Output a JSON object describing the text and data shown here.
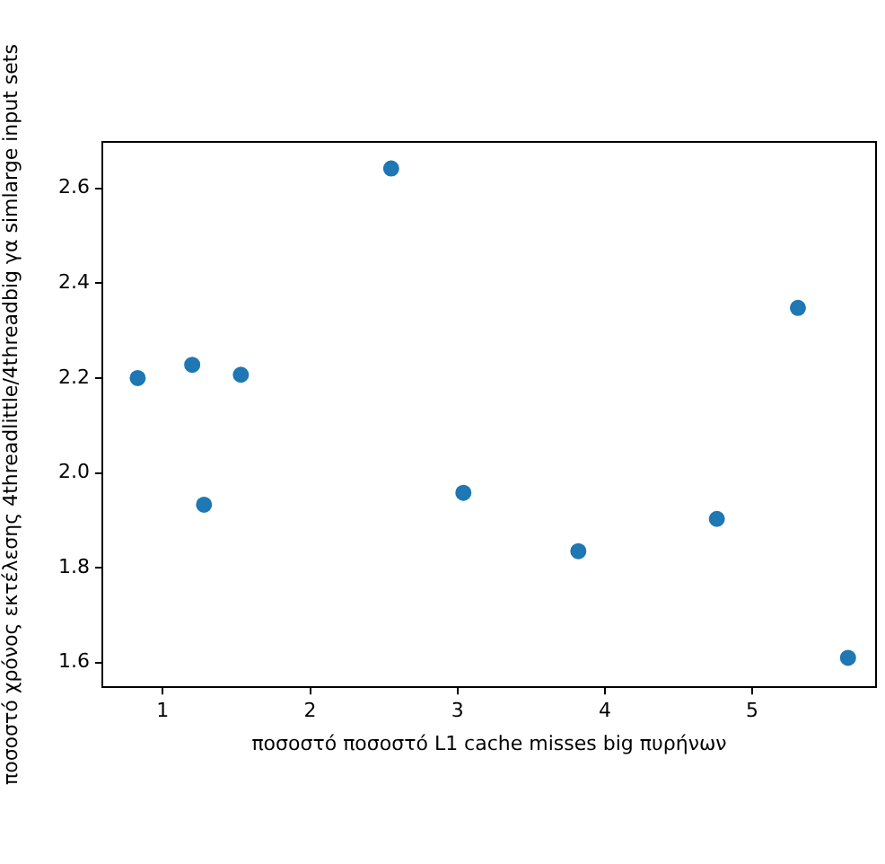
{
  "chart_data": {
    "type": "scatter",
    "xlabel": "ποσοστό ποσοστό L1 cache misses big πυρήνων",
    "ylabel": "ποσοστό χρόνος εκτέλεσης 4threadlittle/4threadbig γα simlarge input sets",
    "x": [
      0.83,
      1.2,
      1.28,
      1.53,
      2.55,
      3.04,
      3.82,
      4.76,
      5.31,
      5.65
    ],
    "series": [
      {
        "color": "#1f77b4",
        "values": [
          2.2,
          2.228,
          1.933,
          2.207,
          2.642,
          1.958,
          1.835,
          1.903,
          2.348,
          1.61
        ]
      }
    ],
    "xlim": [
      0.59,
      5.84
    ],
    "ylim": [
      1.548,
      2.698
    ],
    "xticks": [
      1,
      2,
      3,
      4,
      5
    ],
    "yticks": [
      1.6,
      1.8,
      {
        "value": 2,
        "label": "2.0"
      },
      2.2,
      2.4,
      2.6
    ],
    "marker": "circle",
    "grid": false,
    "legend": false
  }
}
